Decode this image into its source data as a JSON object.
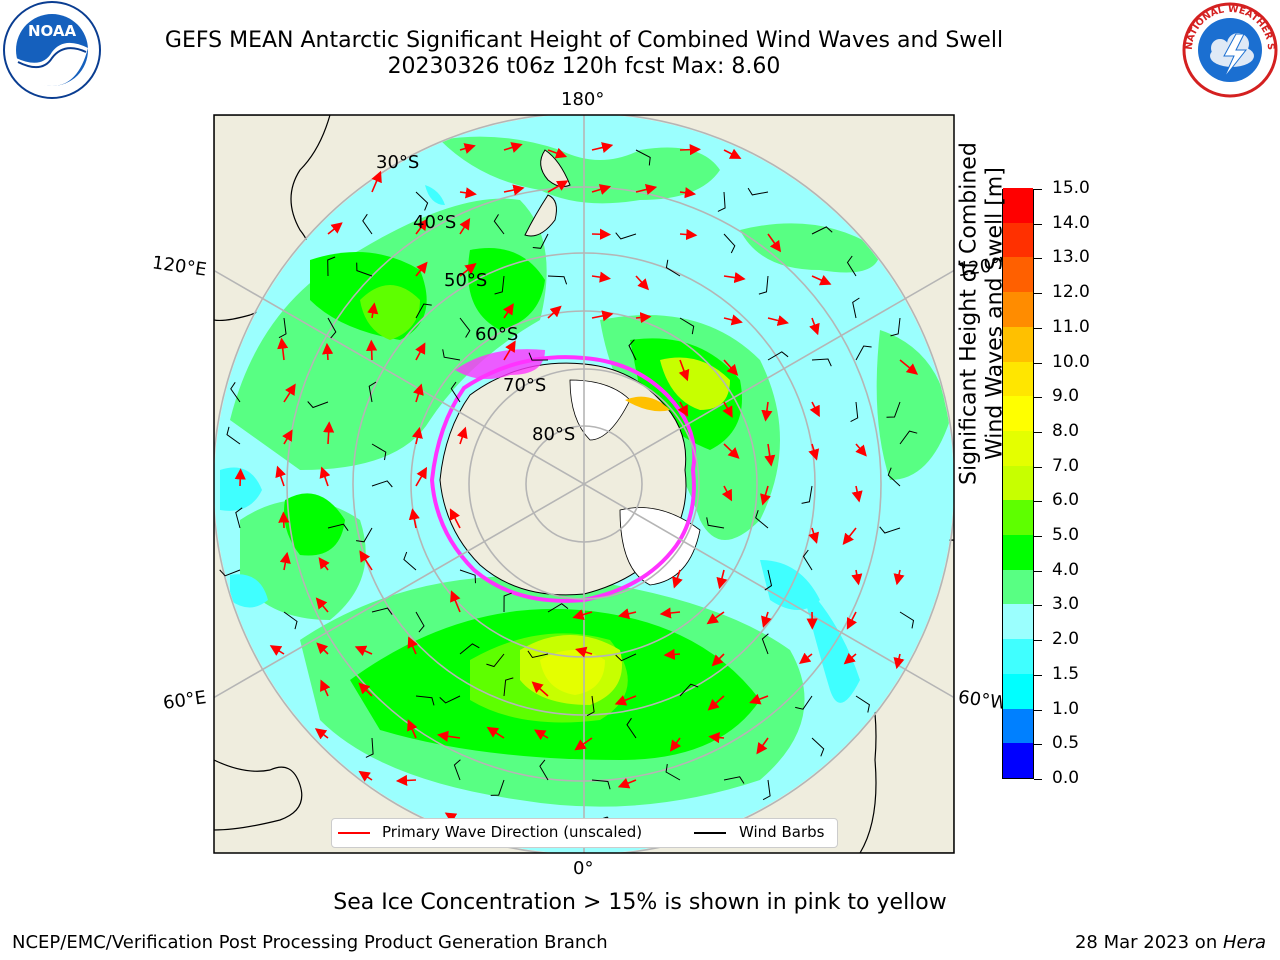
{
  "header": {
    "title_line1": "GEFS MEAN Antarctic Significant Height of Combined Wind Waves and Swell",
    "title_line2": "20230326 t06z 120h fcst   Max: 8.60"
  },
  "logos": {
    "left_logo_text": "NOAA",
    "right_logo_text": "NATIONAL WEATHER SERVICE"
  },
  "map": {
    "projection": "south-polar-stereographic",
    "longitude_labels": [
      "180°",
      "120°E",
      "120°W",
      "60°E",
      "60°W",
      "0°"
    ],
    "latitude_labels": [
      "30°S",
      "40°S",
      "50°S",
      "60°S",
      "70°S",
      "80°S"
    ],
    "colors": {
      "ocean_base": "#58ff83",
      "land": "#efedde",
      "ice_edge": "#ff33ff",
      "graticule": "#b5b5b5",
      "wave_arrow": "#ff0000",
      "wind_barb": "#000000"
    }
  },
  "legend": {
    "items": [
      {
        "label": "Primary Wave Direction (unscaled)",
        "color": "#ff0000"
      },
      {
        "label": "Wind Barbs",
        "color": "#000000"
      }
    ]
  },
  "colorbar": {
    "title_line1": "Significant Height of Combined",
    "title_line2": "Wind Waves and Swell [m]",
    "tick_labels": [
      "0.0",
      "0.5",
      "1.0",
      "1.5",
      "2.0",
      "3.0",
      "4.0",
      "5.0",
      "6.0",
      "7.0",
      "8.0",
      "9.0",
      "10.0",
      "11.0",
      "12.0",
      "13.0",
      "14.0",
      "15.0"
    ],
    "colors": [
      "#0000ff",
      "#0080ff",
      "#00ffff",
      "#40ffff",
      "#9bfffe",
      "#58ff83",
      "#00ff00",
      "#5eff00",
      "#c7ff00",
      "#e4ff00",
      "#ffff00",
      "#ffe600",
      "#ffc000",
      "#ff8c00",
      "#ff6000",
      "#ff3000",
      "#ff0000"
    ]
  },
  "footer": {
    "note": "Sea Ice Concentration > 15% is shown in pink to yellow",
    "credit_left": "NCEP/EMC/Verification Post Processing Product Generation Branch",
    "date_text": "28 Mar 2023 on ",
    "host": "Hera"
  }
}
